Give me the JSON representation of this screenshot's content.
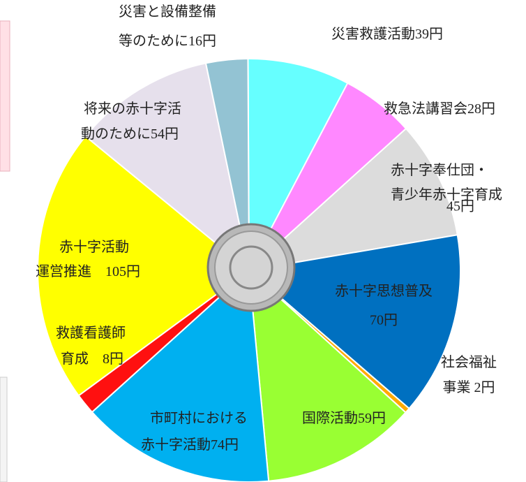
{
  "chart_data": {
    "type": "pie",
    "categories": [
      [
        "災害救護活動"
      ],
      [
        "救急法講習会"
      ],
      [
        "赤十字奉仕団・",
        "青少年赤十字育成"
      ],
      [
        "赤十字思想普及"
      ],
      [
        "社会福祉",
        "事業 "
      ],
      [
        "国際活動"
      ],
      [
        "市町村における",
        "赤十字活動"
      ],
      [
        "救護看護師",
        "育成　"
      ],
      [
        "赤十字活動",
        "運営推進　"
      ],
      [
        "将来の赤十字活",
        "動のために"
      ],
      [
        "災害と設備整備",
        "等のために"
      ]
    ],
    "values": [
      39,
      28,
      45,
      70,
      2,
      59,
      74,
      8,
      105,
      54,
      16
    ],
    "value_labels": [
      "39円",
      "28円",
      "45円",
      "70円",
      "2円",
      "59円",
      "74円",
      "8円",
      "105円",
      "54円",
      "16円"
    ],
    "colors": [
      "#66ffff",
      "#ff88ff",
      "#dcdcdc",
      "#0070c0",
      "#ffaa00",
      "#99ff33",
      "#00b0f0",
      "#ff1010",
      "#ffff00",
      "#e6e0ec",
      "#93c3d3"
    ]
  }
}
